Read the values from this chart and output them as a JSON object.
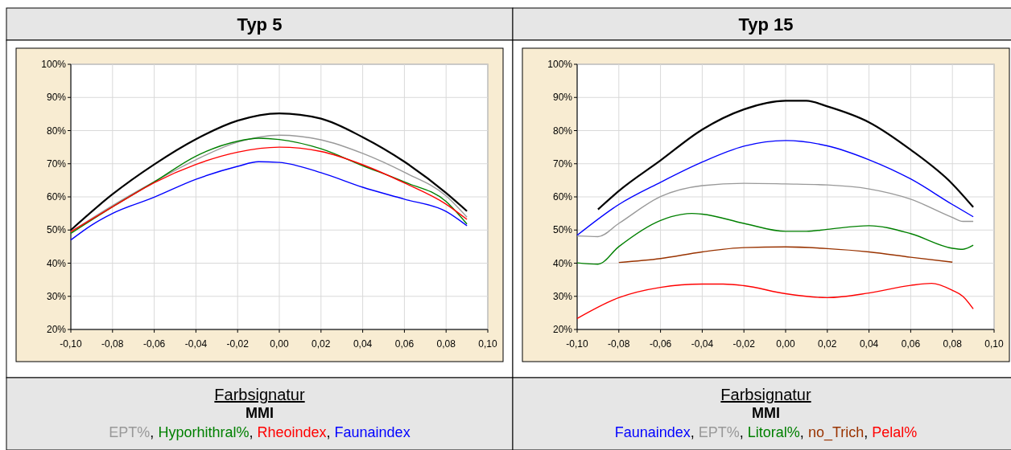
{
  "chart_data": [
    {
      "type": "line",
      "title": "Typ 5",
      "legend_title": "Farbsignatur",
      "annotations": [
        ","
      ],
      "legend": "bottom",
      "grid": true,
      "marker": "none",
      "line_style": "solid",
      "xlim": [
        -0.1,
        0.1
      ],
      "xticks": [
        {
          "value": -0.1,
          "label": "-0,10"
        },
        {
          "value": -0.08,
          "label": "-0,08"
        },
        {
          "value": -0.06,
          "label": "-0,06"
        },
        {
          "value": -0.04,
          "label": "-0,04"
        },
        {
          "value": -0.02,
          "label": "-0,02"
        },
        {
          "value": 0,
          "label": "0,00"
        },
        {
          "value": 0.02,
          "label": "0,02"
        },
        {
          "value": 0.04,
          "label": "0,04"
        },
        {
          "value": 0.06,
          "label": "0,06"
        },
        {
          "value": 0.08,
          "label": "0,08"
        },
        {
          "value": 0.1,
          "label": "0,10"
        }
      ],
      "ylim": [
        20,
        100
      ],
      "yticks": [
        {
          "value": 20,
          "label": "20%"
        },
        {
          "value": 30,
          "label": "30%"
        },
        {
          "value": 40,
          "label": "40%"
        },
        {
          "value": 50,
          "label": "50%"
        },
        {
          "value": 60,
          "label": "60%"
        },
        {
          "value": 70,
          "label": "70%"
        },
        {
          "value": 80,
          "label": "80%"
        },
        {
          "value": 90,
          "label": "90%"
        },
        {
          "value": 100,
          "label": "100%"
        }
      ],
      "series": [
        {
          "name": "MMI",
          "color": "#000000",
          "x": [
            -0.1,
            -0.08,
            -0.06,
            -0.04,
            -0.02,
            0,
            0.02,
            0.04,
            0.06,
            0.08,
            0.09
          ],
          "values": [
            50,
            60.8,
            69.8,
            77.4,
            83,
            85.2,
            83.6,
            78,
            70.6,
            61.2,
            55.7
          ]
        },
        {
          "name": "EPT%",
          "color": "#999999",
          "x": [
            -0.1,
            -0.08,
            -0.06,
            -0.04,
            -0.02,
            0,
            0.02,
            0.04,
            0.06,
            0.08,
            0.09
          ],
          "values": [
            49.5,
            57.4,
            64.6,
            71.2,
            76.5,
            78.6,
            77.2,
            73.1,
            67.4,
            60.3,
            53.9
          ]
        },
        {
          "name": "Hyporhithral%",
          "color": "#008000",
          "x": [
            -0.1,
            -0.08,
            -0.06,
            -0.04,
            -0.02,
            -0.01,
            0,
            0.02,
            0.04,
            0.06,
            0.08,
            0.09
          ],
          "values": [
            49,
            57,
            64.5,
            72.3,
            76.8,
            77.7,
            77.3,
            74.5,
            69.4,
            64.5,
            58.6,
            51.8
          ]
        },
        {
          "name": "Rheoindex",
          "color": "#ff0000",
          "x": [
            -0.1,
            -0.08,
            -0.06,
            -0.04,
            -0.02,
            0,
            0.02,
            0.04,
            0.06,
            0.08,
            0.09
          ],
          "values": [
            49.5,
            57,
            64.3,
            69.8,
            73.5,
            75,
            73.7,
            69.7,
            64.2,
            57.8,
            53.2
          ]
        },
        {
          "name": "Faunaindex",
          "color": "#0000ff",
          "x": [
            -0.1,
            -0.09,
            -0.08,
            -0.06,
            -0.04,
            -0.02,
            -0.01,
            0,
            0.02,
            0.04,
            0.06,
            0.08,
            0.09
          ],
          "values": [
            47,
            51.5,
            55,
            59.9,
            65.3,
            69.2,
            70.6,
            70.4,
            67.3,
            62.9,
            59.3,
            55.6,
            51.3
          ]
        }
      ]
    },
    {
      "type": "line",
      "title": "Typ 15",
      "legend_title": "Farbsignatur",
      "annotations": [
        ","
      ],
      "legend": "bottom",
      "grid": true,
      "marker": "none",
      "line_style": "solid",
      "xlim": [
        -0.1,
        0.1
      ],
      "xticks": [
        {
          "value": -0.1,
          "label": "-0,10"
        },
        {
          "value": -0.08,
          "label": "-0,08"
        },
        {
          "value": -0.06,
          "label": "-0,06"
        },
        {
          "value": -0.04,
          "label": "-0,04"
        },
        {
          "value": -0.02,
          "label": "-0,02"
        },
        {
          "value": 0,
          "label": "0,00"
        },
        {
          "value": 0.02,
          "label": "0,02"
        },
        {
          "value": 0.04,
          "label": "0,04"
        },
        {
          "value": 0.06,
          "label": "0,06"
        },
        {
          "value": 0.08,
          "label": "0,08"
        },
        {
          "value": 0.1,
          "label": "0,10"
        }
      ],
      "ylim": [
        20,
        100
      ],
      "yticks": [
        {
          "value": 20,
          "label": "20%"
        },
        {
          "value": 30,
          "label": "30%"
        },
        {
          "value": 40,
          "label": "40%"
        },
        {
          "value": 50,
          "label": "50%"
        },
        {
          "value": 60,
          "label": "60%"
        },
        {
          "value": 70,
          "label": "70%"
        },
        {
          "value": 80,
          "label": "80%"
        },
        {
          "value": 90,
          "label": "90%"
        },
        {
          "value": 100,
          "label": "100%"
        }
      ],
      "series": [
        {
          "name": "MMI",
          "color": "#000000",
          "x": [
            -0.09,
            -0.08,
            -0.06,
            -0.04,
            -0.02,
            0,
            0.01,
            0.02,
            0.04,
            0.06,
            0.08,
            0.09
          ],
          "values": [
            56.2,
            61.8,
            71,
            80.3,
            86.4,
            89,
            89,
            87.3,
            82.5,
            74.2,
            63.9,
            56.9
          ]
        },
        {
          "name": "Faunaindex",
          "color": "#0000ff",
          "x": [
            -0.1,
            -0.08,
            -0.06,
            -0.04,
            -0.02,
            0,
            0.02,
            0.04,
            0.06,
            0.08,
            0.09
          ],
          "values": [
            48.4,
            57.7,
            64.4,
            70.5,
            75.3,
            77,
            75.4,
            71.2,
            65.4,
            57.7,
            54
          ]
        },
        {
          "name": "EPT%",
          "color": "#999999",
          "x": [
            -0.1,
            -0.09,
            -0.08,
            -0.06,
            -0.04,
            -0.02,
            0,
            0.02,
            0.04,
            0.06,
            0.08,
            0.085,
            0.09
          ],
          "values": [
            48.2,
            48,
            52,
            60.1,
            63.4,
            64.1,
            63.9,
            63.6,
            62.4,
            59.3,
            53.8,
            52.6,
            52.6
          ]
        },
        {
          "name": "Litoral%",
          "color": "#008000",
          "x": [
            -0.1,
            -0.09,
            -0.08,
            -0.06,
            -0.05,
            -0.045,
            -0.04,
            -0.02,
            0,
            0.01,
            0.02,
            0.04,
            0.06,
            0.08,
            0.085,
            0.09
          ],
          "values": [
            40.1,
            39.7,
            45,
            52.9,
            54.7,
            55,
            54.8,
            52,
            49.6,
            49.6,
            50.2,
            51.3,
            48.9,
            44.5,
            44.2,
            45.4
          ]
        },
        {
          "name": "no_Trich",
          "color": "#993300",
          "x": [
            -0.08,
            -0.06,
            -0.04,
            -0.02,
            0,
            0.02,
            0.04,
            0.06,
            0.08
          ],
          "values": [
            40.2,
            41.4,
            43.4,
            44.7,
            44.9,
            44.4,
            43.4,
            41.8,
            40.3
          ]
        },
        {
          "name": "Pelal%",
          "color": "#ff0000",
          "x": [
            -0.1,
            -0.08,
            -0.06,
            -0.04,
            -0.03,
            -0.02,
            0,
            0.02,
            0.04,
            0.06,
            0.07,
            0.08,
            0.085,
            0.09
          ],
          "values": [
            23.3,
            29.6,
            32.7,
            33.7,
            33.7,
            33.2,
            30.8,
            29.6,
            31,
            33.3,
            33.9,
            31.8,
            30,
            26.2
          ]
        }
      ]
    }
  ]
}
